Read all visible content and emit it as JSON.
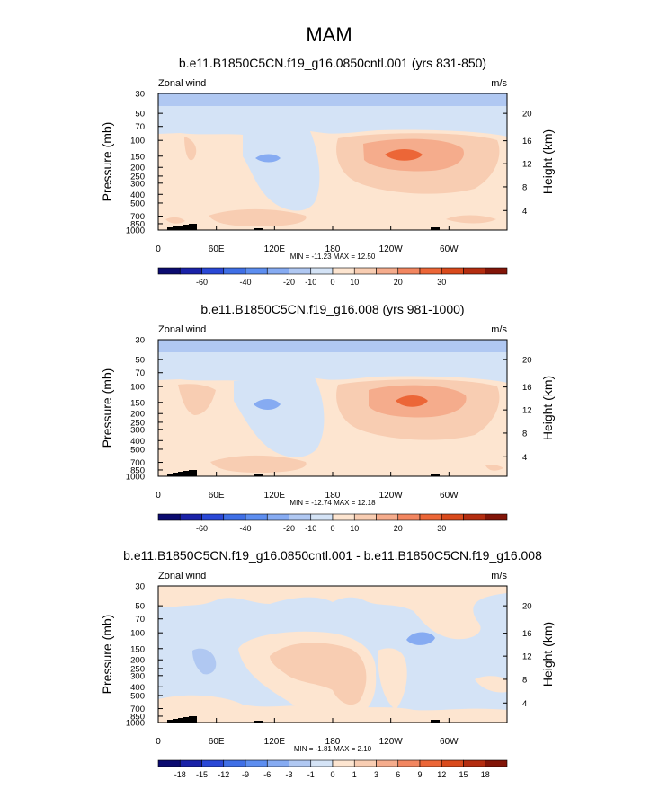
{
  "figure": {
    "title": "MAM"
  },
  "common": {
    "variable_label": "Zonal wind",
    "units_label": "m/s",
    "ylabel_left": "Pressure (mb)",
    "ylabel_right": "Height (km)"
  },
  "chart_data": [
    {
      "type": "heatmap",
      "title": "b.e11.B1850C5CN.f19_g16.0850cntl.001 (yrs 831-850)",
      "x_ticks": [
        "0",
        "60E",
        "120E",
        "180",
        "120W",
        "60W"
      ],
      "y_ticks": [
        "30",
        "50",
        "70",
        "100",
        "150",
        "200",
        "250",
        "300",
        "400",
        "500",
        "700",
        "850",
        "1000"
      ],
      "y_right_ticks": [
        "20",
        "16",
        "12",
        "8",
        "4"
      ],
      "stats": "MIN = -11.23  MAX =  12.50",
      "colorbar": {
        "labels": [
          "-60",
          "-40",
          "-20",
          "-10",
          "0",
          "10",
          "20",
          "30"
        ],
        "colors": [
          "#0b0b70",
          "#1a22a8",
          "#2a48d6",
          "#3f6fe6",
          "#5d8ef0",
          "#86abf2",
          "#b0c8f2",
          "#d4e3f6",
          "#fde5d0",
          "#f8cdb2",
          "#f5ac8c",
          "#f28660",
          "#ec6637",
          "#d94a1c",
          "#b42d10",
          "#821508"
        ]
      },
      "features": [
        "tropopause jet near 150 mb around 120W-150W (~10-20 m/s)",
        "weak easterlies near 150 mb at 120E"
      ]
    },
    {
      "type": "heatmap",
      "title": "b.e11.B1850C5CN.f19_g16.008 (yrs 981-1000)",
      "x_ticks": [
        "0",
        "60E",
        "120E",
        "180",
        "120W",
        "60W"
      ],
      "y_ticks": [
        "30",
        "50",
        "70",
        "100",
        "150",
        "200",
        "250",
        "300",
        "400",
        "500",
        "700",
        "850",
        "1000"
      ],
      "y_right_ticks": [
        "20",
        "16",
        "12",
        "8",
        "4"
      ],
      "stats": "MIN = -12.74  MAX =  12.18",
      "colorbar": {
        "labels": [
          "-60",
          "-40",
          "-20",
          "-10",
          "0",
          "10",
          "20",
          "30"
        ],
        "colors": [
          "#0b0b70",
          "#1a22a8",
          "#2a48d6",
          "#3f6fe6",
          "#5d8ef0",
          "#86abf2",
          "#b0c8f2",
          "#d4e3f6",
          "#fde5d0",
          "#f8cdb2",
          "#f5ac8c",
          "#f28660",
          "#ec6637",
          "#d94a1c",
          "#b42d10",
          "#821508"
        ]
      },
      "features": [
        "tropopause jet near 150 mb around 120W-150W (~10-20 m/s)",
        "weak easterlies near 150 mb at 120E"
      ]
    },
    {
      "type": "heatmap",
      "title": "b.e11.B1850C5CN.f19_g16.0850cntl.001 - b.e11.B1850C5CN.f19_g16.008",
      "x_ticks": [
        "0",
        "60E",
        "120E",
        "180",
        "120W",
        "60W"
      ],
      "y_ticks": [
        "30",
        "50",
        "70",
        "100",
        "150",
        "200",
        "250",
        "300",
        "400",
        "500",
        "700",
        "850",
        "1000"
      ],
      "y_right_ticks": [
        "20",
        "16",
        "12",
        "8",
        "4"
      ],
      "stats": "MIN = -1.81  MAX =  2.10",
      "colorbar": {
        "labels": [
          "-18",
          "-15",
          "-12",
          "-9",
          "-6",
          "-3",
          "-1",
          "0",
          "1",
          "3",
          "6",
          "9",
          "12",
          "15",
          "18"
        ],
        "colors": [
          "#0b0b70",
          "#1a22a8",
          "#2a48d6",
          "#3f6fe6",
          "#5d8ef0",
          "#86abf2",
          "#b0c8f2",
          "#d4e3f6",
          "#fde5d0",
          "#f8cdb2",
          "#f5ac8c",
          "#f28660",
          "#ec6637",
          "#d94a1c",
          "#b42d10",
          "#821508"
        ]
      },
      "features": [
        "difference field mostly within -1 to 1 m/s",
        "positive difference over 150-400 mb near 120E-180"
      ]
    }
  ]
}
